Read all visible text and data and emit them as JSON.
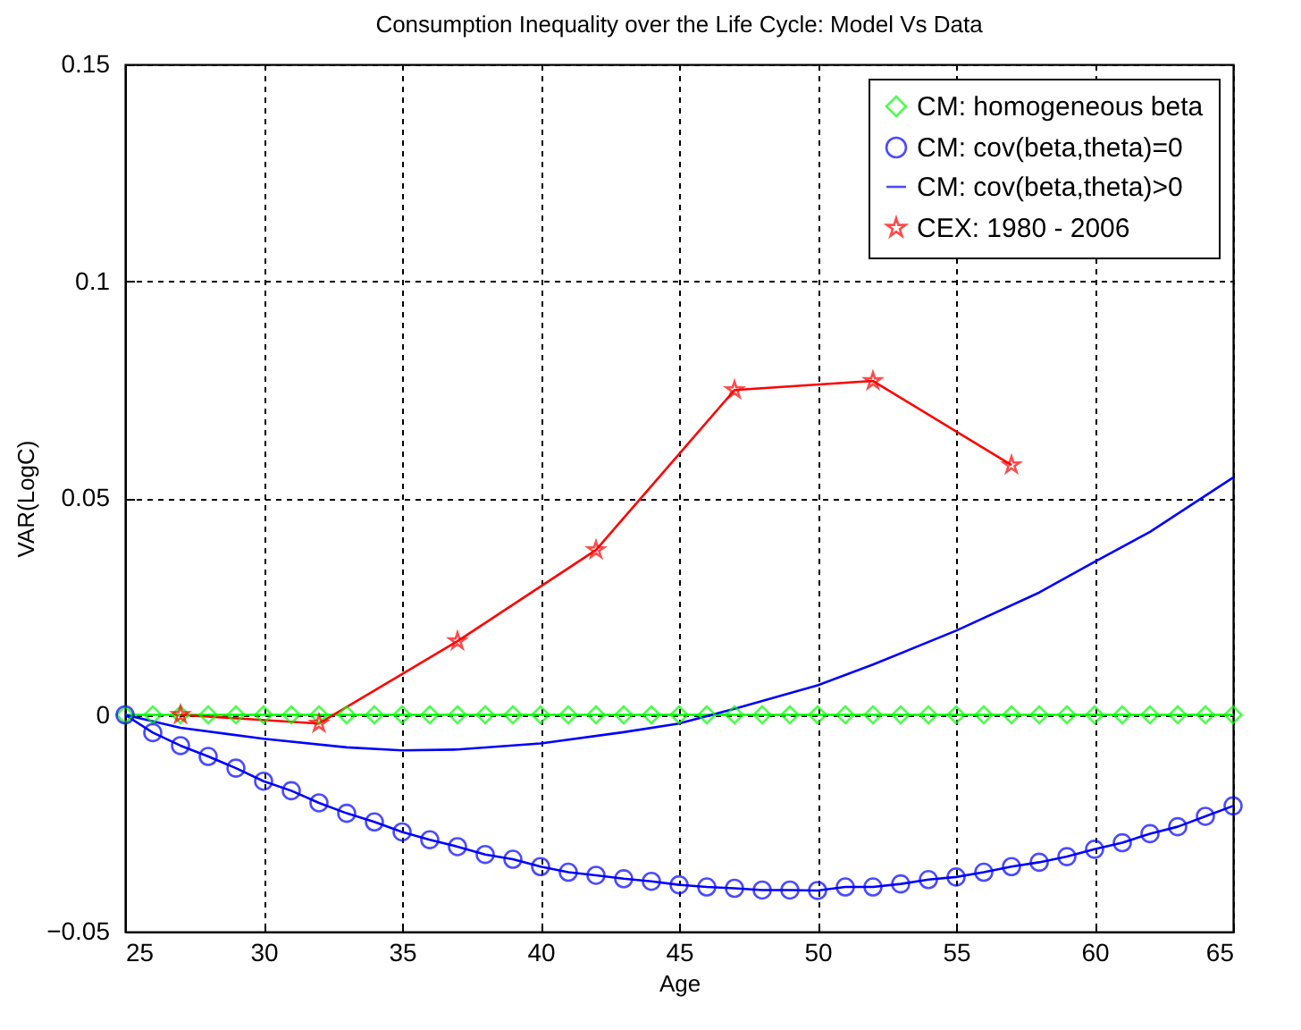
{
  "chart_data": {
    "type": "line",
    "title": "Consumption Inequality over the Life Cycle: Model Vs Data",
    "xlabel": "Age",
    "ylabel": "VAR(LogC)",
    "xlim": [
      25,
      65
    ],
    "xticks": [
      25,
      30,
      35,
      40,
      45,
      50,
      55,
      60,
      65
    ],
    "ylim": [
      -0.05,
      0.15
    ],
    "yticks": [
      -0.05,
      0,
      0.05,
      0.1,
      0.15
    ],
    "grid": true,
    "legend": "top right",
    "line_style": "solid",
    "series": [
      {
        "name": "CM: homogeneous beta",
        "color": "#00ff00",
        "marker": "diamond",
        "x": [
          25,
          26,
          27,
          28,
          29,
          30,
          31,
          32,
          33,
          34,
          35,
          36,
          37,
          38,
          39,
          40,
          41,
          42,
          43,
          44,
          45,
          46,
          47,
          48,
          49,
          50,
          51,
          52,
          53,
          54,
          55,
          56,
          57,
          58,
          59,
          60,
          61,
          62,
          63,
          64,
          65
        ],
        "values": [
          0,
          0,
          0,
          0,
          0,
          0,
          0,
          0,
          0,
          0,
          0,
          0,
          0,
          0,
          0,
          0,
          0,
          0,
          0,
          0,
          0,
          0,
          0,
          0,
          0,
          0,
          0,
          0,
          0,
          0,
          0,
          0,
          0,
          0,
          0,
          0,
          0,
          0,
          0,
          0,
          0
        ]
      },
      {
        "name": "CM: cov(beta,theta)=0",
        "color": "#0000ff",
        "marker": "circle",
        "x": [
          25,
          26,
          27,
          28,
          29,
          30,
          31,
          32,
          33,
          34,
          35,
          36,
          37,
          38,
          39,
          40,
          41,
          42,
          43,
          44,
          45,
          46,
          47,
          48,
          49,
          50,
          51,
          52,
          53,
          54,
          55,
          56,
          57,
          58,
          59,
          60,
          61,
          62,
          63,
          64,
          65
        ],
        "values": [
          0,
          -0.0041,
          -0.0071,
          -0.0096,
          -0.0123,
          -0.0153,
          -0.0175,
          -0.0203,
          -0.0227,
          -0.0247,
          -0.027,
          -0.0288,
          -0.0304,
          -0.0322,
          -0.0333,
          -0.035,
          -0.0363,
          -0.037,
          -0.0378,
          -0.0384,
          -0.0392,
          -0.0397,
          -0.04,
          -0.0404,
          -0.0404,
          -0.0405,
          -0.0397,
          -0.0397,
          -0.039,
          -0.038,
          -0.0374,
          -0.0363,
          -0.035,
          -0.034,
          -0.0327,
          -0.031,
          -0.0295,
          -0.0274,
          -0.0258,
          -0.0234,
          -0.021
        ]
      },
      {
        "name": "CM: cov(beta,theta)>0",
        "color": "#0000ff",
        "marker": "none",
        "x": [
          25,
          27,
          30,
          33,
          35,
          37,
          40,
          43,
          45,
          47,
          50,
          52,
          55,
          58,
          60,
          62,
          65
        ],
        "values": [
          0,
          -0.003,
          -0.0055,
          -0.0075,
          -0.0082,
          -0.008,
          -0.0066,
          -0.004,
          -0.002,
          0.0014,
          0.0068,
          0.0116,
          0.0194,
          0.0282,
          0.0353,
          0.0422,
          0.0547
        ]
      },
      {
        "name": "CEX: 1980 - 2006",
        "color": "#ff0000",
        "marker": "star",
        "x": [
          27,
          32,
          37,
          42,
          47,
          52,
          57
        ],
        "values": [
          0,
          -0.002,
          0.017,
          0.038,
          0.0749,
          0.077,
          0.0576
        ]
      }
    ]
  }
}
